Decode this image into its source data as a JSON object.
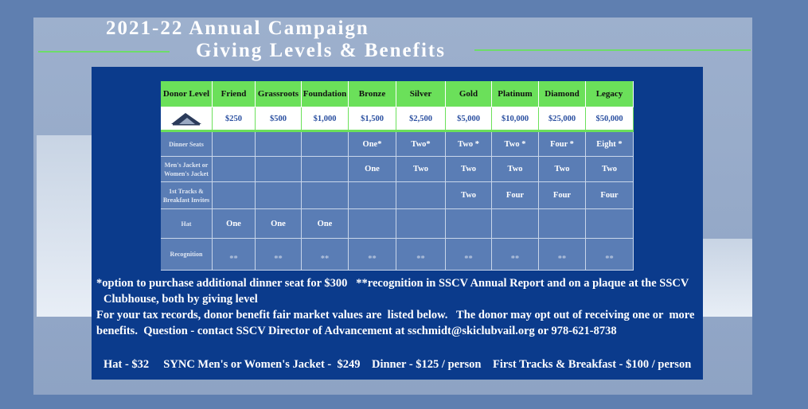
{
  "header": {
    "title_line1": "2021-22 Annual Campaign",
    "title_line2": "Giving Levels & Benefits"
  },
  "table": {
    "columns": [
      "Donor Level",
      "Friend",
      "Grassroots",
      "Foundation",
      "Bronze",
      "Silver",
      "Gold",
      "Platinum",
      "Diamond",
      "Legacy"
    ],
    "prices": [
      "$250",
      "$500",
      "$1,000",
      "$1,500",
      "$2,500",
      "$5,000",
      "$10,000",
      "$25,000",
      "$50,000"
    ],
    "rows": [
      {
        "label": "Dinner Seats",
        "cells": [
          null,
          null,
          null,
          "One*",
          "Two*",
          "Two *",
          "Two *",
          "Four *",
          "Eight *"
        ]
      },
      {
        "label": "Men's Jacket or Women's Jacket",
        "cells": [
          null,
          null,
          null,
          "One",
          "Two",
          "Two",
          "Two",
          "Two",
          "Two"
        ]
      },
      {
        "label": "1st Tracks & Breakfast Invites",
        "cells": [
          null,
          null,
          null,
          null,
          null,
          "Two",
          "Four",
          "Four",
          "Four"
        ]
      },
      {
        "label": "Hat",
        "cells": [
          "One",
          "One",
          "One",
          null,
          null,
          null,
          null,
          null,
          null
        ]
      },
      {
        "label": "Recognition",
        "cells": [
          "**",
          "**",
          "**",
          "**",
          "**",
          "**",
          "**",
          "**",
          "**"
        ]
      }
    ]
  },
  "notes": [
    "*option to purchase additional dinner seat for $300   **recognition in SSCV Annual Report and on a plaque at the SSCV",
    "Clubhouse, both by giving level",
    "For your tax records, donor benefit fair market values are  listed below.   The donor may opt out of receiving one or  more",
    "benefits.  Question - contact SSCV Director of Advancement at sschmidt@skiclubvail.org or 978-621-8738"
  ],
  "footer": "Hat - $32     SYNC Men's or Women's Jacket -  $249    Dinner - $125 / person    First Tracks & Breakfast - $100 / person"
}
